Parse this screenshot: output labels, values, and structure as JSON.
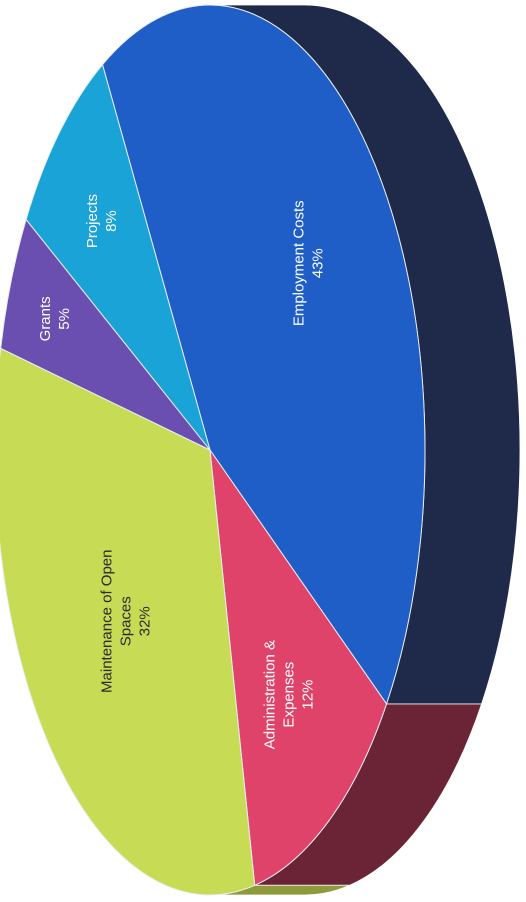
{
  "chart_data": {
    "type": "pie",
    "title": "",
    "three_d": true,
    "label_orientation": "rotated-90-ccw",
    "slices": [
      {
        "name": "Employment Costs",
        "label_lines": [
          "Employment Costs"
        ],
        "value": 43,
        "value_label": "43%",
        "color": "#1f5ec6",
        "side_color": "#1f2a4a"
      },
      {
        "name": "Administration & Expenses",
        "label_lines": [
          "Administration &",
          "Expenses"
        ],
        "value": 12,
        "value_label": "12%",
        "color": "#e0436a",
        "side_color": "#6a2436"
      },
      {
        "name": "Maintenance of Open Spaces",
        "label_lines": [
          "Maintenance of Open",
          "Spaces"
        ],
        "value": 32,
        "value_label": "32%",
        "color": "#c7dc54",
        "side_color": "#8f9a3c"
      },
      {
        "name": "Grants",
        "label_lines": [
          "Grants"
        ],
        "value": 5,
        "value_label": "5%",
        "color": "#6a4eb0",
        "side_color": "#3e2e66"
      },
      {
        "name": "Projects",
        "label_lines": [
          "Projects"
        ],
        "value": 8,
        "value_label": "8%",
        "color": "#1aa3d6",
        "side_color": "#146b8a"
      }
    ]
  }
}
